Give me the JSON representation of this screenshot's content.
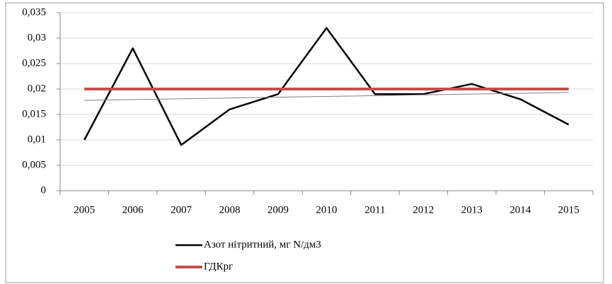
{
  "chart_data": {
    "type": "line",
    "categories": [
      "2005",
      "2006",
      "2007",
      "2008",
      "2009",
      "2010",
      "2011",
      "2012",
      "2013",
      "2014",
      "2015"
    ],
    "series": [
      {
        "name": "Азот нітритний, мг N/дм3",
        "color": "#000000",
        "values": [
          0.01,
          0.028,
          0.009,
          0.016,
          0.019,
          0.032,
          0.019,
          0.019,
          0.021,
          0.018,
          0.013
        ]
      },
      {
        "name": "ГДКрг",
        "color": "#c0504d",
        "values": [
          0.02,
          0.02,
          0.02,
          0.02,
          0.02,
          0.02,
          0.02,
          0.02,
          0.02,
          0.02,
          0.02
        ]
      }
    ],
    "ylim": [
      0,
      0.035
    ],
    "yticks": [
      0,
      {
        "value": 0.005,
        "label": "0,005"
      },
      {
        "value": 0.01,
        "label": "0,01"
      },
      {
        "value": 0.015,
        "label": "0,015"
      },
      {
        "value": 0.02,
        "label": "0,02"
      },
      {
        "value": 0.025,
        "label": "0,025"
      },
      {
        "value": 0.03,
        "label": "0,03"
      },
      {
        "value": 0.035,
        "label": "0,035"
      }
    ],
    "grid": true,
    "trendline": true,
    "legend": "bottom"
  }
}
